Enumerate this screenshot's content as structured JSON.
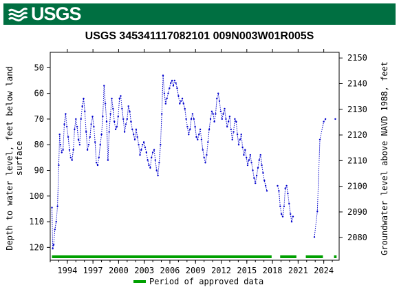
{
  "header": {
    "logo_text": "USGS",
    "brand_color": "#006f41"
  },
  "chart_data": {
    "type": "line",
    "title": "USGS 345341117082101 009N003W01R005S",
    "ylabel_left": "Depth to water level, feet below land surface",
    "ylabel_left_lines": [
      "Depth to water level, feet below land",
      "surface"
    ],
    "ylabel_right": "Groundwater level above NAVD 1988, feet",
    "xlim": [
      1992.0,
      2025.8
    ],
    "ylim_left": [
      125,
      44
    ],
    "ylim_right": [
      2071.2,
      2152.2
    ],
    "x_ticks": [
      1994,
      1997,
      2000,
      2003,
      2006,
      2009,
      2012,
      2015,
      2018,
      2021,
      2024
    ],
    "x_tick_labels": [
      "1994",
      "1997",
      "2000",
      "2003",
      "2006",
      "2009",
      "2012",
      "2015",
      "2018",
      "2021",
      "2024"
    ],
    "y_ticks_left": [
      50,
      60,
      70,
      80,
      90,
      100,
      110,
      120
    ],
    "y_tick_labels_left": [
      "50",
      "60",
      "70",
      "80",
      "90",
      "100",
      "110",
      "120"
    ],
    "y_ticks_right": [
      2080,
      2090,
      2100,
      2110,
      2120,
      2130,
      2140,
      2150
    ],
    "y_tick_labels_right": [
      "2080",
      "2090",
      "2100",
      "2110",
      "2120",
      "2130",
      "2140",
      "2150"
    ],
    "series_color": "#0000cc",
    "approved_color": "#00a000",
    "legend": {
      "label": "Period of approved data",
      "placement": "bottom"
    },
    "approved_periods": [
      [
        1992.2,
        2017.9
      ],
      [
        2018.9,
        2020.8
      ],
      [
        2021.9,
        2023.9
      ],
      [
        2025.2,
        2025.5
      ]
    ],
    "segments": [
      [
        [
          1992.2,
          104.5
        ],
        [
          1992.3,
          120.5
        ],
        [
          1992.4,
          119
        ],
        [
          1992.55,
          113
        ],
        [
          1992.7,
          110
        ],
        [
          1992.85,
          104
        ],
        [
          1993.0,
          88
        ],
        [
          1993.1,
          76
        ],
        [
          1993.2,
          80
        ],
        [
          1993.35,
          83
        ],
        [
          1993.5,
          82
        ],
        [
          1993.65,
          72
        ],
        [
          1993.8,
          68
        ],
        [
          1993.95,
          73
        ],
        [
          1994.1,
          77
        ],
        [
          1994.25,
          82
        ],
        [
          1994.4,
          85
        ],
        [
          1994.55,
          86
        ],
        [
          1994.7,
          82
        ],
        [
          1994.85,
          74
        ],
        [
          1995.0,
          70
        ],
        [
          1995.15,
          73
        ],
        [
          1995.3,
          78
        ],
        [
          1995.45,
          80
        ],
        [
          1995.6,
          70
        ],
        [
          1995.75,
          65
        ],
        [
          1995.9,
          62
        ],
        [
          1996.05,
          67
        ],
        [
          1996.2,
          75
        ],
        [
          1996.35,
          82
        ],
        [
          1996.5,
          80
        ],
        [
          1996.65,
          77
        ],
        [
          1996.8,
          72
        ],
        [
          1996.95,
          69
        ],
        [
          1997.1,
          73
        ],
        [
          1997.25,
          79
        ],
        [
          1997.4,
          87
        ],
        [
          1997.55,
          88
        ],
        [
          1997.7,
          85
        ],
        [
          1997.85,
          80
        ],
        [
          1998.0,
          76
        ],
        [
          1998.15,
          69
        ],
        [
          1998.3,
          57
        ],
        [
          1998.45,
          64
        ],
        [
          1998.6,
          71
        ],
        [
          1998.75,
          86
        ],
        [
          1998.9,
          75
        ],
        [
          1999.05,
          68
        ],
        [
          1999.2,
          62
        ],
        [
          1999.35,
          66
        ],
        [
          1999.5,
          71
        ],
        [
          1999.65,
          74
        ],
        [
          1999.8,
          73
        ],
        [
          1999.95,
          69
        ],
        [
          2000.1,
          62
        ],
        [
          2000.25,
          61
        ],
        [
          2000.4,
          66
        ],
        [
          2000.55,
          70
        ],
        [
          2000.7,
          75
        ],
        [
          2000.85,
          72
        ],
        [
          2001.0,
          70
        ],
        [
          2001.15,
          65
        ],
        [
          2001.3,
          67
        ],
        [
          2001.45,
          71
        ],
        [
          2001.6,
          74
        ],
        [
          2001.75,
          76
        ],
        [
          2001.9,
          78
        ],
        [
          2002.05,
          74
        ],
        [
          2002.2,
          77
        ],
        [
          2002.35,
          80
        ],
        [
          2002.5,
          84
        ],
        [
          2002.65,
          82
        ],
        [
          2002.8,
          80
        ],
        [
          2002.95,
          79
        ],
        [
          2003.1,
          81
        ],
        [
          2003.25,
          83
        ],
        [
          2003.4,
          86
        ],
        [
          2003.55,
          88
        ],
        [
          2003.7,
          89
        ],
        [
          2003.85,
          85
        ],
        [
          2004.0,
          83
        ],
        [
          2004.15,
          82
        ],
        [
          2004.3,
          86
        ],
        [
          2004.45,
          90
        ],
        [
          2004.6,
          92
        ],
        [
          2004.75,
          87
        ],
        [
          2004.9,
          80
        ],
        [
          2005.05,
          68
        ],
        [
          2005.2,
          53
        ],
        [
          2005.35,
          60
        ],
        [
          2005.5,
          64
        ],
        [
          2005.65,
          62
        ],
        [
          2005.8,
          60
        ],
        [
          2005.95,
          58
        ],
        [
          2006.1,
          56
        ],
        [
          2006.25,
          55
        ],
        [
          2006.4,
          57
        ],
        [
          2006.55,
          55
        ],
        [
          2006.7,
          56
        ],
        [
          2006.85,
          58
        ],
        [
          2007.0,
          61
        ],
        [
          2007.15,
          64
        ],
        [
          2007.3,
          63
        ],
        [
          2007.45,
          62
        ],
        [
          2007.6,
          64
        ],
        [
          2007.75,
          66
        ],
        [
          2007.9,
          70
        ],
        [
          2008.05,
          73
        ],
        [
          2008.2,
          76
        ],
        [
          2008.35,
          74
        ],
        [
          2008.5,
          70
        ],
        [
          2008.65,
          68
        ],
        [
          2008.8,
          70
        ],
        [
          2008.95,
          73
        ],
        [
          2009.1,
          77
        ],
        [
          2009.25,
          78
        ],
        [
          2009.4,
          76
        ],
        [
          2009.55,
          74
        ],
        [
          2009.7,
          78
        ],
        [
          2009.85,
          82
        ],
        [
          2010.0,
          85
        ],
        [
          2010.15,
          87
        ],
        [
          2010.3,
          84
        ],
        [
          2010.45,
          79
        ],
        [
          2010.6,
          74
        ],
        [
          2010.75,
          70
        ],
        [
          2010.9,
          67
        ],
        [
          2011.05,
          68
        ],
        [
          2011.2,
          71
        ],
        [
          2011.35,
          68
        ],
        [
          2011.5,
          62
        ],
        [
          2011.65,
          60
        ],
        [
          2011.8,
          63
        ],
        [
          2011.95,
          67
        ],
        [
          2012.1,
          70
        ],
        [
          2012.25,
          68
        ],
        [
          2012.4,
          66
        ],
        [
          2012.55,
          70
        ],
        [
          2012.7,
          73
        ],
        [
          2012.85,
          71
        ],
        [
          2013.0,
          69
        ],
        [
          2013.15,
          74
        ],
        [
          2013.3,
          78
        ],
        [
          2013.45,
          75
        ],
        [
          2013.6,
          70
        ],
        [
          2013.75,
          71
        ],
        [
          2013.9,
          76
        ],
        [
          2014.05,
          80
        ],
        [
          2014.2,
          78
        ],
        [
          2014.35,
          76
        ],
        [
          2014.5,
          81
        ],
        [
          2014.65,
          84
        ],
        [
          2014.8,
          82
        ],
        [
          2014.95,
          85
        ],
        [
          2015.1,
          88
        ],
        [
          2015.25,
          86
        ],
        [
          2015.4,
          84
        ],
        [
          2015.55,
          87
        ],
        [
          2015.7,
          90
        ],
        [
          2015.85,
          93
        ],
        [
          2016.0,
          95
        ],
        [
          2016.15,
          92
        ],
        [
          2016.3,
          89
        ],
        [
          2016.45,
          86
        ],
        [
          2016.6,
          84
        ],
        [
          2016.75,
          88
        ],
        [
          2016.9,
          91
        ],
        [
          2017.05,
          94
        ],
        [
          2017.2,
          96
        ],
        [
          2017.35,
          98
        ]
      ],
      [
        [
          2018.6,
          96
        ],
        [
          2018.75,
          98
        ],
        [
          2018.9,
          104
        ],
        [
          2019.05,
          107
        ],
        [
          2019.2,
          108
        ],
        [
          2019.35,
          104
        ],
        [
          2019.5,
          97
        ],
        [
          2019.65,
          96
        ],
        [
          2019.8,
          99
        ],
        [
          2019.95,
          103
        ],
        [
          2020.1,
          107
        ],
        [
          2020.25,
          110
        ],
        [
          2020.4,
          108
        ]
      ],
      [
        [
          2022.9,
          116
        ],
        [
          2023.25,
          106
        ],
        [
          2023.55,
          78
        ],
        [
          2024.0,
          71
        ],
        [
          2024.2,
          70
        ]
      ],
      [
        [
          2025.35,
          70
        ]
      ]
    ]
  }
}
